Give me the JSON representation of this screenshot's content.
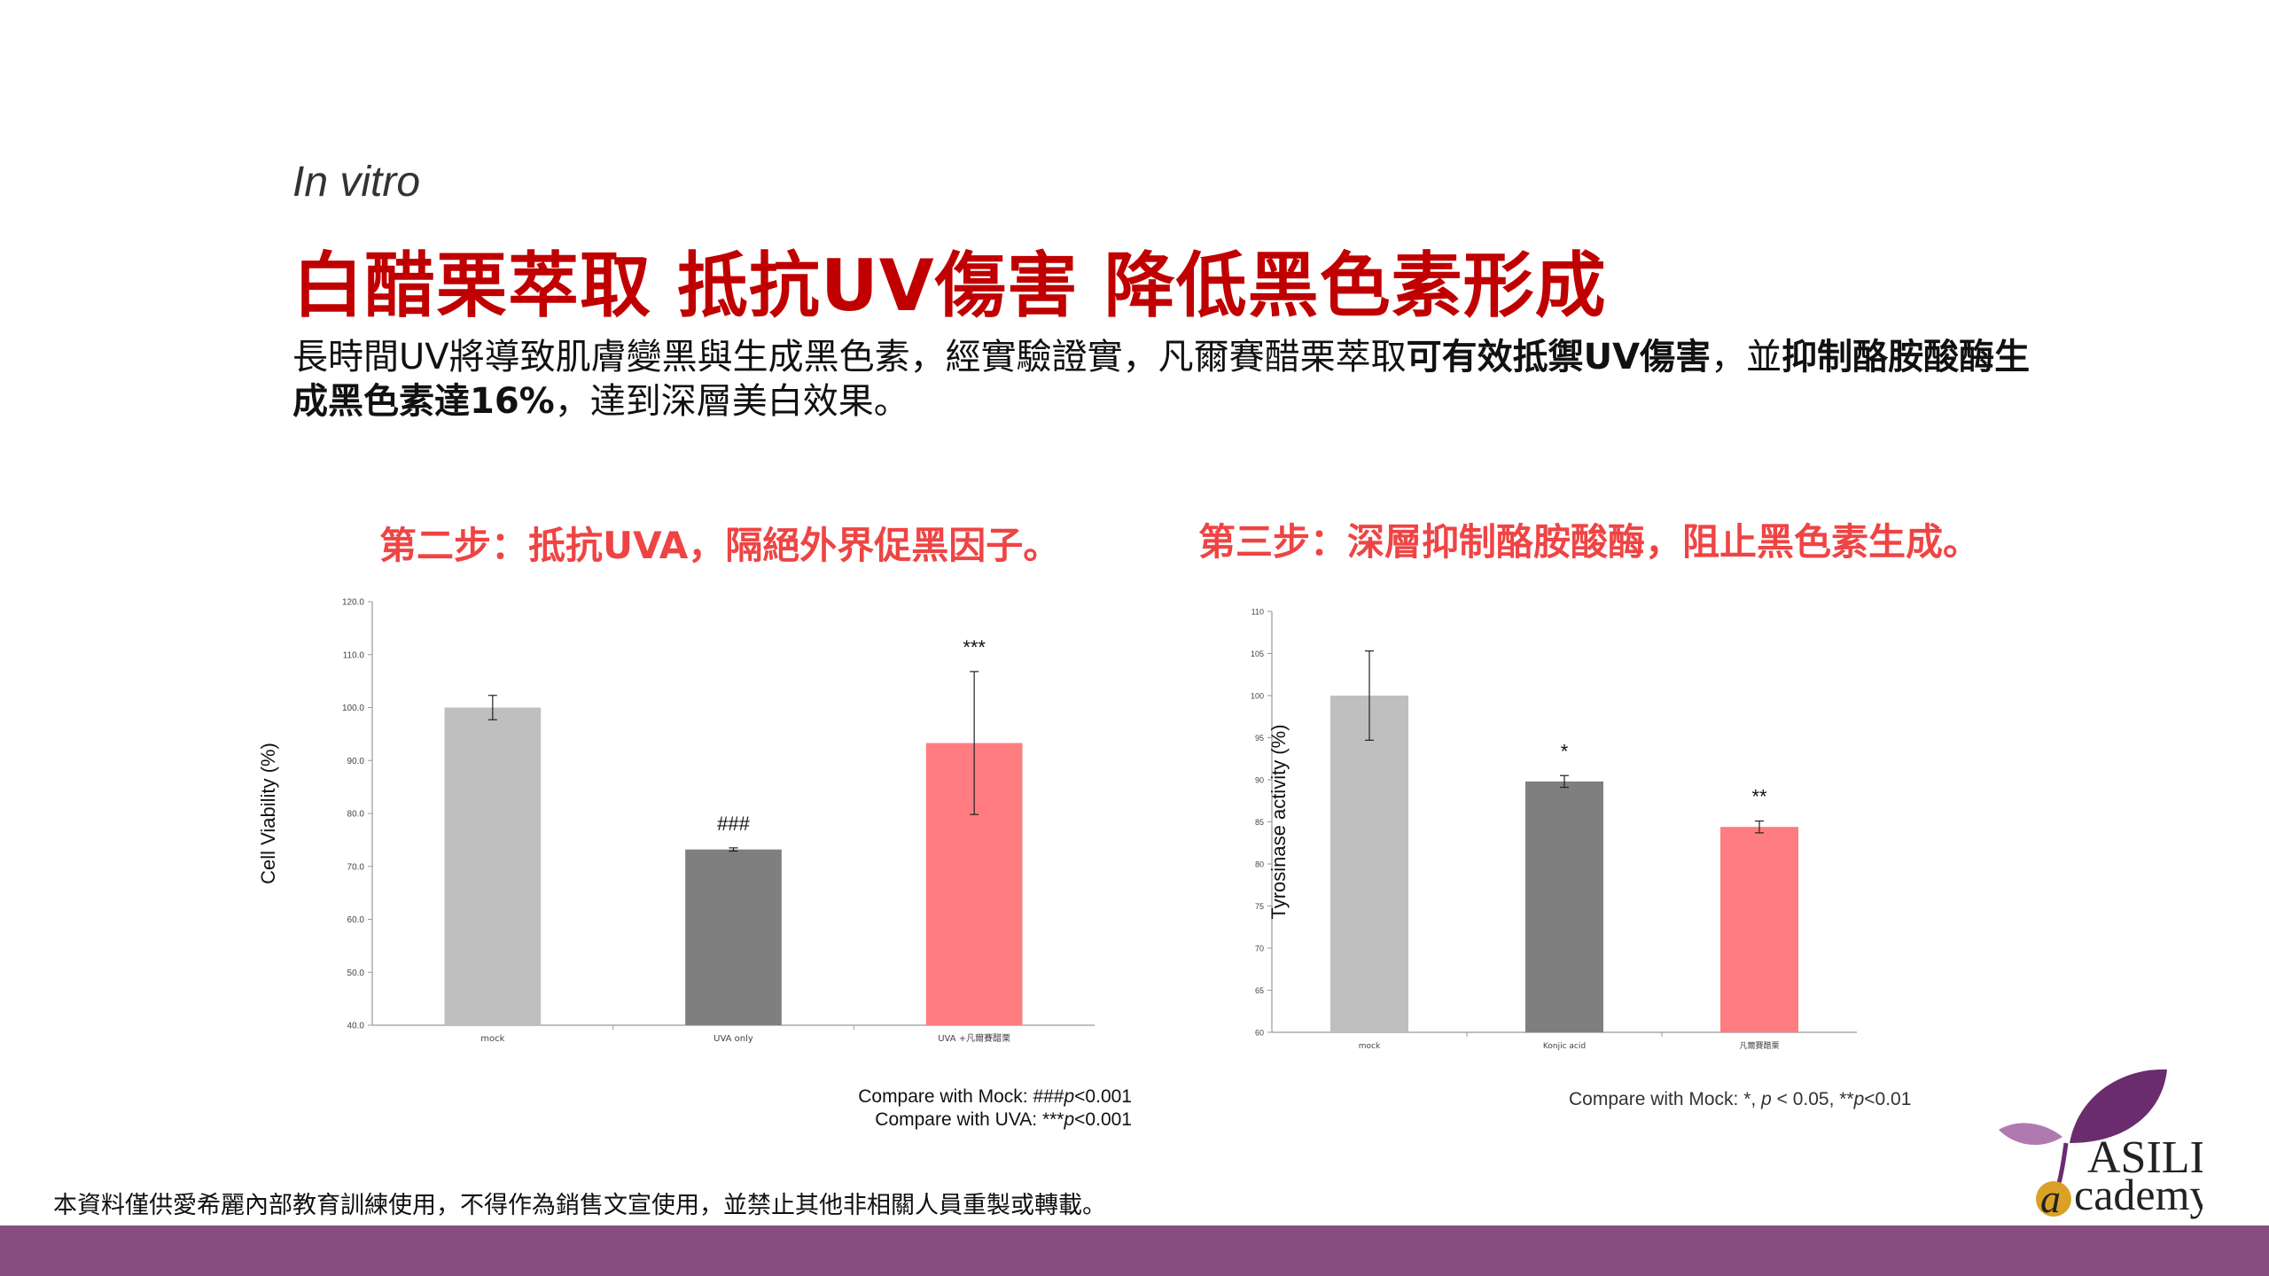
{
  "header": {
    "subtitle": "In vitro",
    "title": "白醋栗萃取 抵抗UV傷害 降低黑色素形成",
    "intro_part1": "長時間UV將導致肌膚變黑與生成黑色素，經實驗證實，凡爾賽醋栗萃取",
    "intro_bold1": "可有效抵禦UV傷害",
    "intro_part2": "，並",
    "intro_bold2": "抑制酪胺酸酶生成黑色素達16%",
    "intro_part3": "，達到深層美白效果。"
  },
  "steps": {
    "step2": "第二步：抵抗UVA，隔絕外界促黑因子。",
    "step3": "第三步：深層抑制酪胺酸酶，阻止黑色素生成。"
  },
  "notes": {
    "chart1_line1_prefix": "Compare with Mock: ###",
    "chart1_line1_p": "p",
    "chart1_line1_suffix": "<0.001",
    "chart1_line2_prefix": "Compare with UVA: ***",
    "chart1_line2_p": "p",
    "chart1_line2_suffix": "<0.001",
    "chart2_prefix": "Compare with Mock: *, ",
    "chart2_p1": "p",
    "chart2_mid": " < 0.05, **",
    "chart2_p2": "p",
    "chart2_suffix": "<0.01"
  },
  "footer": {
    "disclaimer": "本資料僅供愛希麗內部教育訓練使用，不得作為銷售文宣使用，並禁止其他非相關人員重製或轉載。"
  },
  "logo": {
    "line1": "ASILI",
    "line2": "cademy",
    "letter": "a"
  },
  "colors": {
    "title_red": "#c00000",
    "step_red": "#ef4444",
    "footer_band": "#874f80",
    "bar_light_gray": "#bfbfbf",
    "bar_dark_gray": "#7f7f7f",
    "bar_pink": "#ff7c80",
    "logo_purple": "#6b2c6e",
    "logo_gold": "#d9a227"
  },
  "chart_data": [
    {
      "type": "bar",
      "ylabel": "Cell Viability (%)",
      "xlabel": "",
      "categories": [
        "mock",
        "UVA only",
        "UVA +凡爾賽醋栗"
      ],
      "values": [
        100.0,
        73.2,
        93.3
      ],
      "errors": [
        2.3,
        0.3,
        13.5
      ],
      "annotations": [
        "",
        "###",
        "***"
      ],
      "ylim": [
        40,
        120
      ],
      "yticks": [
        "40.0",
        "50.0",
        "60.0",
        "70.0",
        "80.0",
        "90.0",
        "100.0",
        "110.0",
        "120.0"
      ],
      "colors": [
        "#bfbfbf",
        "#7f7f7f",
        "#ff7c80"
      ],
      "grid": false
    },
    {
      "type": "bar",
      "ylabel": "Tyrosinase activity (%)",
      "xlabel": "",
      "categories": [
        "mock",
        "Konjic acid",
        "凡爾賽醋栗"
      ],
      "values": [
        100.0,
        89.8,
        84.4
      ],
      "errors": [
        5.3,
        0.7,
        0.7
      ],
      "annotations": [
        "",
        "*",
        "**"
      ],
      "ylim": [
        60,
        110
      ],
      "yticks": [
        "60",
        "65",
        "70",
        "75",
        "80",
        "85",
        "90",
        "95",
        "100",
        "105",
        "110"
      ],
      "colors": [
        "#bfbfbf",
        "#7f7f7f",
        "#ff7c80"
      ],
      "grid": false
    }
  ]
}
